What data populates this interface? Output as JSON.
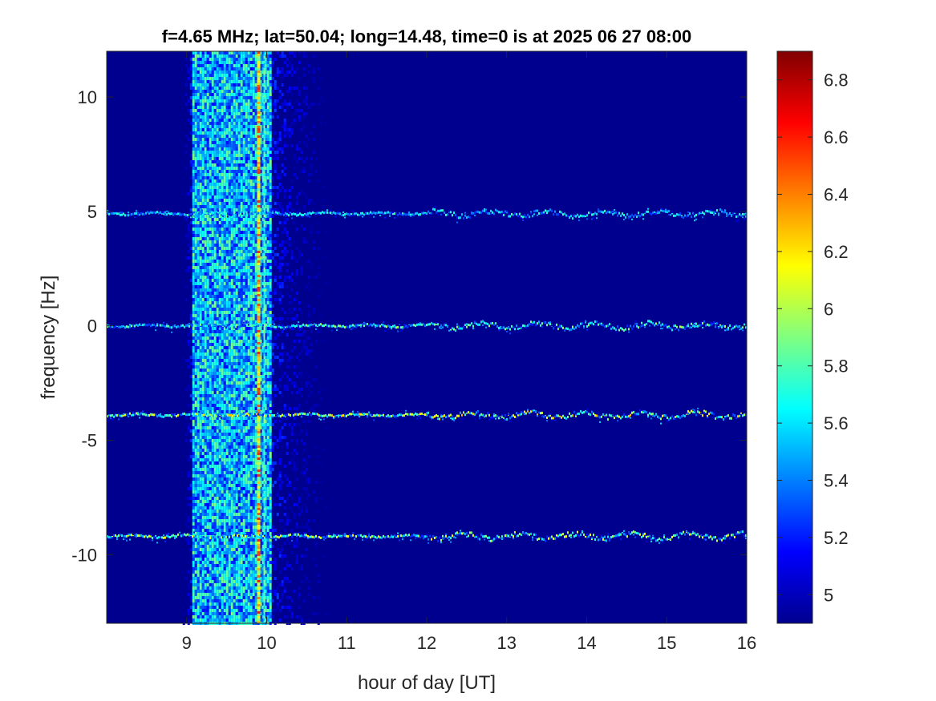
{
  "chart_data": {
    "type": "heatmap",
    "title": "f=4.65 MHz;  lat=50.04; long=14.48, time=0 is at 2025 06 27 08:00",
    "xlabel": "hour of day [UT]",
    "ylabel": "frequency [Hz]",
    "xlim": [
      8.0,
      16.0
    ],
    "ylim": [
      -13.0,
      12.0
    ],
    "x_ticks": [
      9,
      10,
      11,
      12,
      13,
      14,
      15,
      16
    ],
    "x_tick_labels": [
      "9",
      "10",
      "11",
      "12",
      "13",
      "14",
      "15",
      "16"
    ],
    "y_ticks": [
      10,
      5,
      0,
      -5,
      -10
    ],
    "y_tick_labels": [
      "10",
      "5",
      "0",
      "-5",
      "-10"
    ],
    "colormap": "jet",
    "clim": [
      4.9,
      6.9
    ],
    "colorbar_ticks": [
      6.8,
      6.6,
      6.4,
      6.2,
      6,
      5.8,
      5.6,
      5.4,
      5.2,
      5
    ],
    "colorbar_tick_labels": [
      "6.8",
      "6.6",
      "6.4",
      "6.2",
      "6",
      "5.8",
      "5.6",
      "5.4",
      "5.2",
      "5"
    ],
    "background_value": 4.95,
    "traces": [
      {
        "freq": 4.9,
        "x_start": 8.0,
        "x_end": 16.0,
        "peak": 5.8
      },
      {
        "freq": 0.0,
        "x_start": 8.0,
        "x_end": 16.0,
        "peak": 6.0
      },
      {
        "freq": -3.9,
        "x_start": 8.0,
        "x_end": 16.0,
        "peak": 6.3
      },
      {
        "freq": -9.2,
        "x_start": 8.0,
        "x_end": 16.0,
        "peak": 6.2
      }
    ],
    "broadband_band": {
      "x_start": 9.05,
      "x_end": 10.05,
      "peak": 5.9
    },
    "vertical_lines": [
      {
        "x": 9.9,
        "peak": 6.6
      }
    ]
  }
}
